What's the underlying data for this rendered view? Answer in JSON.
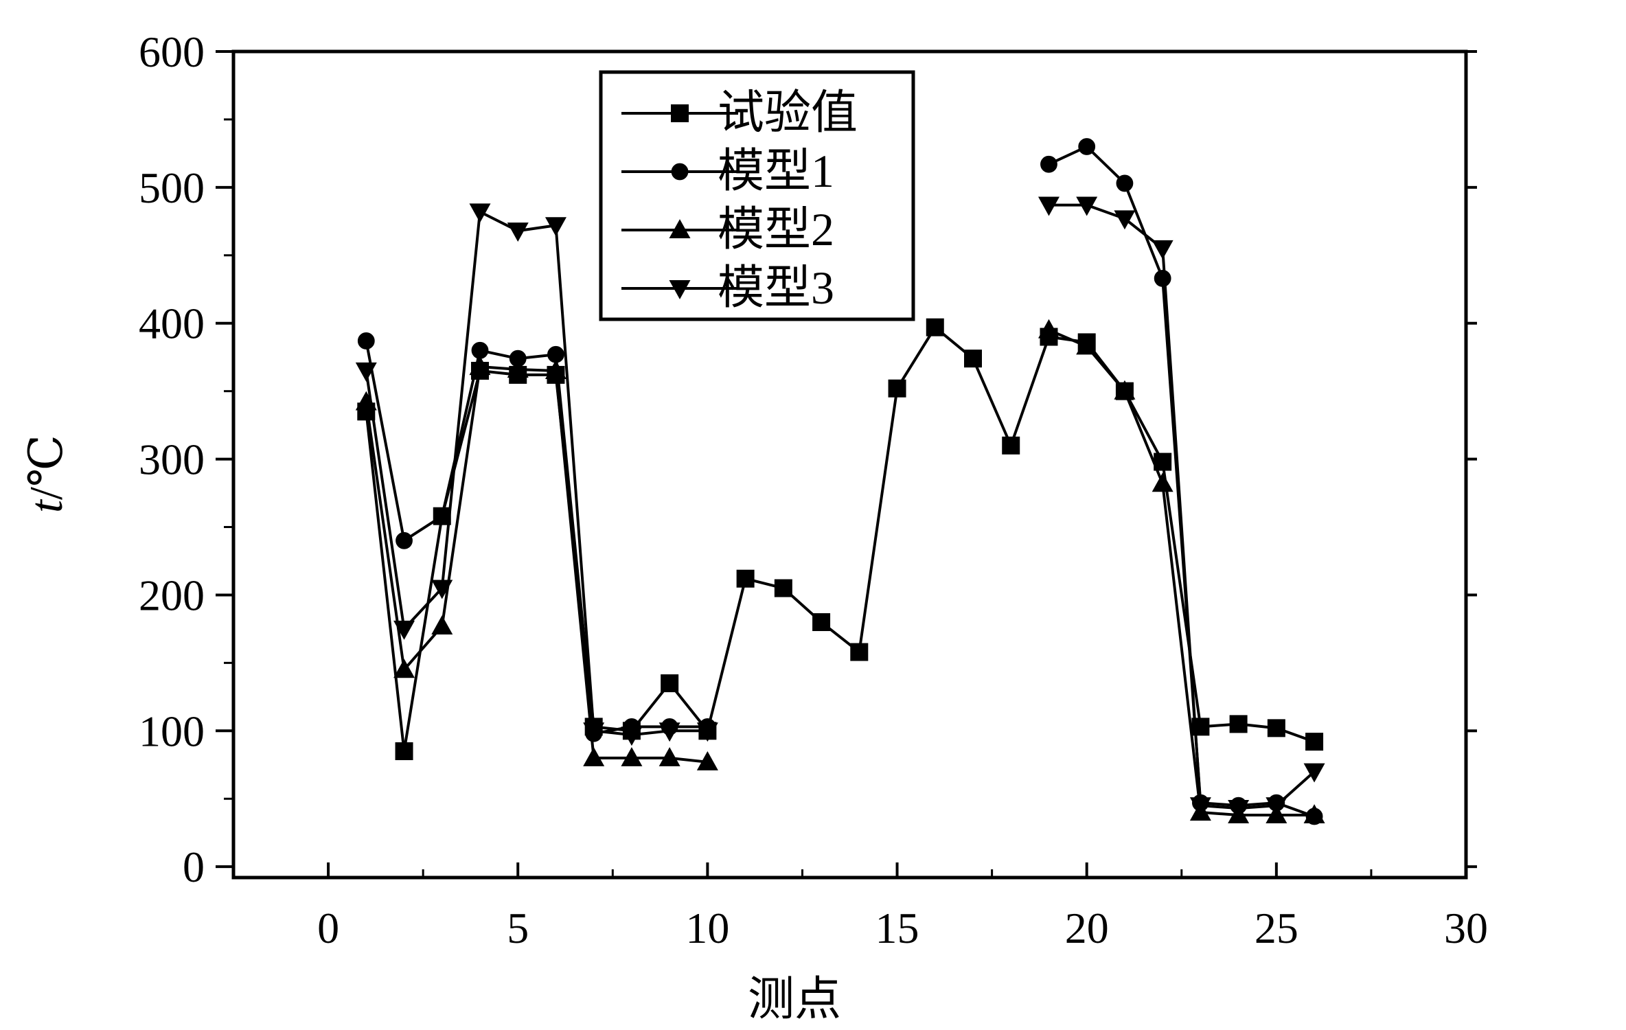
{
  "chart_data": {
    "type": "line",
    "xlabel": "测点",
    "ylabel_italic": "t",
    "ylabel_unit": "/℃",
    "xlim": [
      -2.5,
      30
    ],
    "ylim": [
      -8,
      600
    ],
    "xticks": [
      0,
      5,
      10,
      15,
      20,
      25,
      30
    ],
    "yticks": [
      0,
      100,
      200,
      300,
      400,
      500,
      600
    ],
    "grid": false,
    "legend_position": "top-center",
    "series": [
      {
        "name": "试验值",
        "marker": "square",
        "points": [
          [
            1,
            335
          ],
          [
            2,
            85
          ],
          [
            3,
            258
          ],
          [
            4,
            365
          ],
          [
            5,
            362
          ],
          [
            6,
            362
          ],
          [
            7,
            103
          ],
          [
            8,
            100
          ],
          [
            9,
            135
          ],
          [
            10,
            100
          ],
          [
            11,
            212
          ],
          [
            12,
            205
          ],
          [
            13,
            180
          ],
          [
            14,
            158
          ],
          [
            15,
            352
          ],
          [
            16,
            397
          ],
          [
            17,
            374
          ],
          [
            18,
            310
          ],
          [
            19,
            390
          ],
          [
            20,
            386
          ],
          [
            21,
            350
          ],
          [
            22,
            298
          ],
          [
            23,
            103
          ],
          [
            24,
            105
          ],
          [
            25,
            102
          ],
          [
            26,
            92
          ]
        ]
      },
      {
        "name": "模型1",
        "marker": "circle",
        "points": [
          [
            1,
            387
          ],
          [
            2,
            240
          ],
          [
            3,
            258
          ],
          [
            4,
            380
          ],
          [
            5,
            374
          ],
          [
            6,
            377
          ],
          [
            7,
            98
          ],
          [
            8,
            103
          ],
          [
            9,
            103
          ],
          [
            10,
            103
          ],
          [
            19,
            517
          ],
          [
            20,
            530
          ],
          [
            21,
            503
          ],
          [
            22,
            433
          ],
          [
            23,
            47
          ],
          [
            24,
            45
          ],
          [
            25,
            47
          ],
          [
            26,
            37
          ]
        ]
      },
      {
        "name": "模型2",
        "marker": "triangle-up",
        "points": [
          [
            1,
            342
          ],
          [
            2,
            145
          ],
          [
            3,
            177
          ],
          [
            4,
            368
          ],
          [
            5,
            366
          ],
          [
            6,
            365
          ],
          [
            7,
            80
          ],
          [
            8,
            80
          ],
          [
            9,
            80
          ],
          [
            10,
            77
          ],
          [
            19,
            395
          ],
          [
            20,
            383
          ],
          [
            21,
            350
          ],
          [
            22,
            282
          ],
          [
            23,
            40
          ],
          [
            24,
            38
          ],
          [
            25,
            38
          ],
          [
            26,
            38
          ]
        ]
      },
      {
        "name": "模型3",
        "marker": "triangle-down",
        "points": [
          [
            1,
            365
          ],
          [
            2,
            175
          ],
          [
            3,
            205
          ],
          [
            4,
            482
          ],
          [
            5,
            468
          ],
          [
            6,
            472
          ],
          [
            7,
            100
          ],
          [
            8,
            97
          ],
          [
            9,
            100
          ],
          [
            10,
            100
          ],
          [
            19,
            487
          ],
          [
            20,
            487
          ],
          [
            21,
            477
          ],
          [
            22,
            455
          ],
          [
            23,
            45
          ],
          [
            24,
            43
          ],
          [
            25,
            45
          ],
          [
            26,
            70
          ]
        ]
      }
    ]
  }
}
